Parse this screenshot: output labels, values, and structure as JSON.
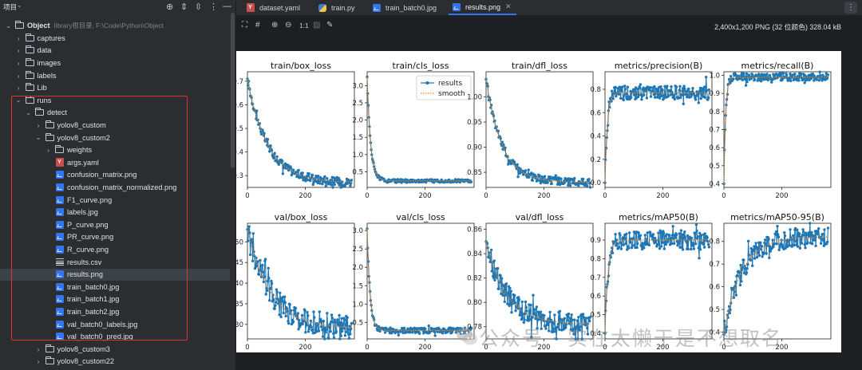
{
  "panel": {
    "title": "项目",
    "tree": [
      {
        "level": 0,
        "chevron": "open",
        "icon": "folder-icon",
        "label": "Object",
        "sub": "library根目录, F:\\Code\\Python\\Object"
      },
      {
        "level": 1,
        "chevron": "closed",
        "icon": "folder-icon",
        "label": "captures"
      },
      {
        "level": 1,
        "chevron": "closed",
        "icon": "folder-icon",
        "label": "data"
      },
      {
        "level": 1,
        "chevron": "closed",
        "icon": "folder-icon",
        "label": "images"
      },
      {
        "level": 1,
        "chevron": "closed",
        "icon": "folder-icon",
        "label": "labels"
      },
      {
        "level": 1,
        "chevron": "closed",
        "icon": "folder-icon",
        "label": "Lib"
      },
      {
        "level": 1,
        "chevron": "open",
        "icon": "folder-icon",
        "label": "runs"
      },
      {
        "level": 2,
        "chevron": "open",
        "icon": "folder-icon",
        "label": "detect"
      },
      {
        "level": 3,
        "chevron": "closed",
        "icon": "folder-icon",
        "label": "yolov8_custom"
      },
      {
        "level": 3,
        "chevron": "open",
        "icon": "folder-icon",
        "label": "yolov8_custom2"
      },
      {
        "level": 4,
        "chevron": "closed",
        "icon": "folder-icon",
        "label": "weights"
      },
      {
        "level": 4,
        "chevron": "none",
        "icon": "yaml-icon",
        "label": "args.yaml"
      },
      {
        "level": 4,
        "chevron": "none",
        "icon": "image-icon",
        "label": "confusion_matrix.png"
      },
      {
        "level": 4,
        "chevron": "none",
        "icon": "image-icon",
        "label": "confusion_matrix_normalized.png"
      },
      {
        "level": 4,
        "chevron": "none",
        "icon": "image-icon",
        "label": "F1_curve.png"
      },
      {
        "level": 4,
        "chevron": "none",
        "icon": "image-icon",
        "label": "labels.jpg"
      },
      {
        "level": 4,
        "chevron": "none",
        "icon": "image-icon",
        "label": "P_curve.png"
      },
      {
        "level": 4,
        "chevron": "none",
        "icon": "image-icon",
        "label": "PR_curve.png"
      },
      {
        "level": 4,
        "chevron": "none",
        "icon": "image-icon",
        "label": "R_curve.png"
      },
      {
        "level": 4,
        "chevron": "none",
        "icon": "csv-icon",
        "label": "results.csv"
      },
      {
        "level": 4,
        "chevron": "none",
        "icon": "image-icon",
        "label": "results.png",
        "selected": true
      },
      {
        "level": 4,
        "chevron": "none",
        "icon": "image-icon",
        "label": "train_batch0.jpg"
      },
      {
        "level": 4,
        "chevron": "none",
        "icon": "image-icon",
        "label": "train_batch1.jpg"
      },
      {
        "level": 4,
        "chevron": "none",
        "icon": "image-icon",
        "label": "train_batch2.jpg"
      },
      {
        "level": 4,
        "chevron": "none",
        "icon": "image-icon",
        "label": "val_batch0_labels.jpg"
      },
      {
        "level": 4,
        "chevron": "none",
        "icon": "image-icon",
        "label": "val_batch0_pred.jpg"
      },
      {
        "level": 3,
        "chevron": "closed",
        "icon": "folder-icon",
        "label": "yolov8_custom3"
      },
      {
        "level": 3,
        "chevron": "closed",
        "icon": "folder-icon",
        "label": "yolov8_custom22"
      }
    ]
  },
  "tabs": [
    {
      "label": "dataset.yaml",
      "icon": "yaml-icon"
    },
    {
      "label": "train.py",
      "icon": "python-icon"
    },
    {
      "label": "train_batch0.jpg",
      "icon": "image-icon"
    },
    {
      "label": "results.png",
      "icon": "image-icon",
      "active": true
    }
  ],
  "toolbar": {
    "zoom_label": "1:1",
    "image_info": "2,400x1,200 PNG (32 位颜色) 328.04 kB"
  },
  "watermark": "公众号 · 实在太懒于是不想取名",
  "colors": {
    "line": "#1f77b4",
    "smooth": "#ff7f0e",
    "accent": "#3574f0",
    "highlight_box": "#e0322f"
  },
  "chart_data": [
    {
      "type": "line",
      "title": "train/box_loss",
      "xlim": [
        0,
        370
      ],
      "ylim": [
        0.25,
        0.74
      ],
      "yticks": [
        "0.3",
        "0.4",
        "0.5",
        "0.6",
        "0.7"
      ],
      "xticks": [
        "0",
        "200"
      ],
      "series": [
        {
          "name": "results",
          "decay": [
            0,
            0.71,
            0.27,
            0.12,
            70
          ],
          "noise": 0.012,
          "x_end": 360
        }
      ],
      "legend": null
    },
    {
      "type": "line",
      "title": "train/cls_loss",
      "xlim": [
        0,
        370
      ],
      "ylim": [
        0.05,
        3.4
      ],
      "yticks": [
        "0.5",
        "1.0",
        "1.5",
        "2.0",
        "2.5",
        "3.0"
      ],
      "xticks": [
        "0",
        "200"
      ],
      "series": [
        {
          "name": "results",
          "decay": [
            0,
            3.25,
            0.24,
            2.4,
            12
          ],
          "noise": 0.03,
          "x_end": 360
        }
      ],
      "legend": {
        "entries": [
          "results",
          "smooth"
        ],
        "position": "upper right"
      }
    },
    {
      "type": "line",
      "title": "train/dfl_loss",
      "xlim": [
        0,
        370
      ],
      "ylim": [
        0.82,
        1.05
      ],
      "yticks": [
        "0.85",
        "0.90",
        "0.95",
        "1.00"
      ],
      "xticks": [
        "0",
        "200"
      ],
      "series": [
        {
          "name": "results",
          "decay": [
            0,
            1.035,
            0.83,
            0.12,
            55
          ],
          "noise": 0.005,
          "x_end": 360
        }
      ],
      "legend": null
    },
    {
      "type": "line",
      "title": "metrics/precision(B)",
      "xlim": [
        0,
        370
      ],
      "ylim": [
        -0.04,
        0.95
      ],
      "yticks": [
        "0.0",
        "0.2",
        "0.4",
        "0.6",
        "0.8"
      ],
      "xticks": [
        "0",
        "200"
      ],
      "series": [
        {
          "name": "results",
          "rise": [
            0,
            0.0,
            0.77,
            8
          ],
          "noise": 0.04,
          "x_end": 360
        }
      ],
      "legend": null
    },
    {
      "type": "line",
      "title": "metrics/recall(B)",
      "xlim": [
        0,
        370
      ],
      "ylim": [
        0.38,
        1.02
      ],
      "yticks": [
        "0.4",
        "0.5",
        "0.6",
        "0.7",
        "0.8",
        "0.9",
        "1.0"
      ],
      "xticks": [
        "0",
        "200"
      ],
      "series": [
        {
          "name": "results",
          "rise": [
            0,
            0.4,
            0.99,
            6
          ],
          "noise": 0.015,
          "x_end": 360
        }
      ],
      "legend": null
    },
    {
      "type": "line",
      "title": "val/box_loss",
      "xlim": [
        0,
        370
      ],
      "ylim": [
        0.265,
        0.545
      ],
      "yticks": [
        "0.30",
        "0.35",
        "0.40",
        "0.45",
        "0.50"
      ],
      "xticks": [
        "0",
        "200"
      ],
      "series": [
        {
          "name": "results",
          "decay": [
            0,
            0.53,
            0.29,
            0.12,
            80
          ],
          "noise": 0.02,
          "x_end": 360
        }
      ],
      "legend": null
    },
    {
      "type": "line",
      "title": "val/cls_loss",
      "xlim": [
        0,
        370
      ],
      "ylim": [
        0.05,
        3.2
      ],
      "yticks": [
        "0.5",
        "1.0",
        "1.5",
        "2.0",
        "2.5",
        "3.0"
      ],
      "xticks": [
        "0",
        "200"
      ],
      "series": [
        {
          "name": "results",
          "decay": [
            0,
            3.05,
            0.28,
            2.2,
            10
          ],
          "noise": 0.05,
          "x_end": 360
        }
      ],
      "legend": null
    },
    {
      "type": "line",
      "title": "val/dfl_loss",
      "xlim": [
        0,
        370
      ],
      "ylim": [
        0.77,
        0.865
      ],
      "yticks": [
        "0.78",
        "0.80",
        "0.82",
        "0.84",
        "0.86"
      ],
      "xticks": [
        "0",
        "200"
      ],
      "series": [
        {
          "name": "results",
          "decay": [
            0,
            0.85,
            0.782,
            0.12,
            70
          ],
          "noise": 0.006,
          "x_end": 360
        }
      ],
      "legend": null
    },
    {
      "type": "line",
      "title": "metrics/mAP50(B)",
      "xlim": [
        0,
        370
      ],
      "ylim": [
        0.37,
        0.99
      ],
      "yticks": [
        "0.4",
        "0.5",
        "0.6",
        "0.7",
        "0.8",
        "0.9"
      ],
      "xticks": [
        "0",
        "200"
      ],
      "series": [
        {
          "name": "results",
          "rise": [
            0,
            0.4,
            0.9,
            10
          ],
          "noise": 0.035,
          "x_end": 360
        }
      ],
      "legend": null
    },
    {
      "type": "line",
      "title": "metrics/mAP50-95(B)",
      "xlim": [
        0,
        370
      ],
      "ylim": [
        0.37,
        0.88
      ],
      "yticks": [
        "0.4",
        "0.5",
        "0.6",
        "0.7",
        "0.8"
      ],
      "xticks": [
        "0",
        "200"
      ],
      "series": [
        {
          "name": "results",
          "rise": [
            0,
            0.39,
            0.82,
            60
          ],
          "noise": 0.03,
          "x_end": 360
        }
      ],
      "legend": null
    }
  ]
}
